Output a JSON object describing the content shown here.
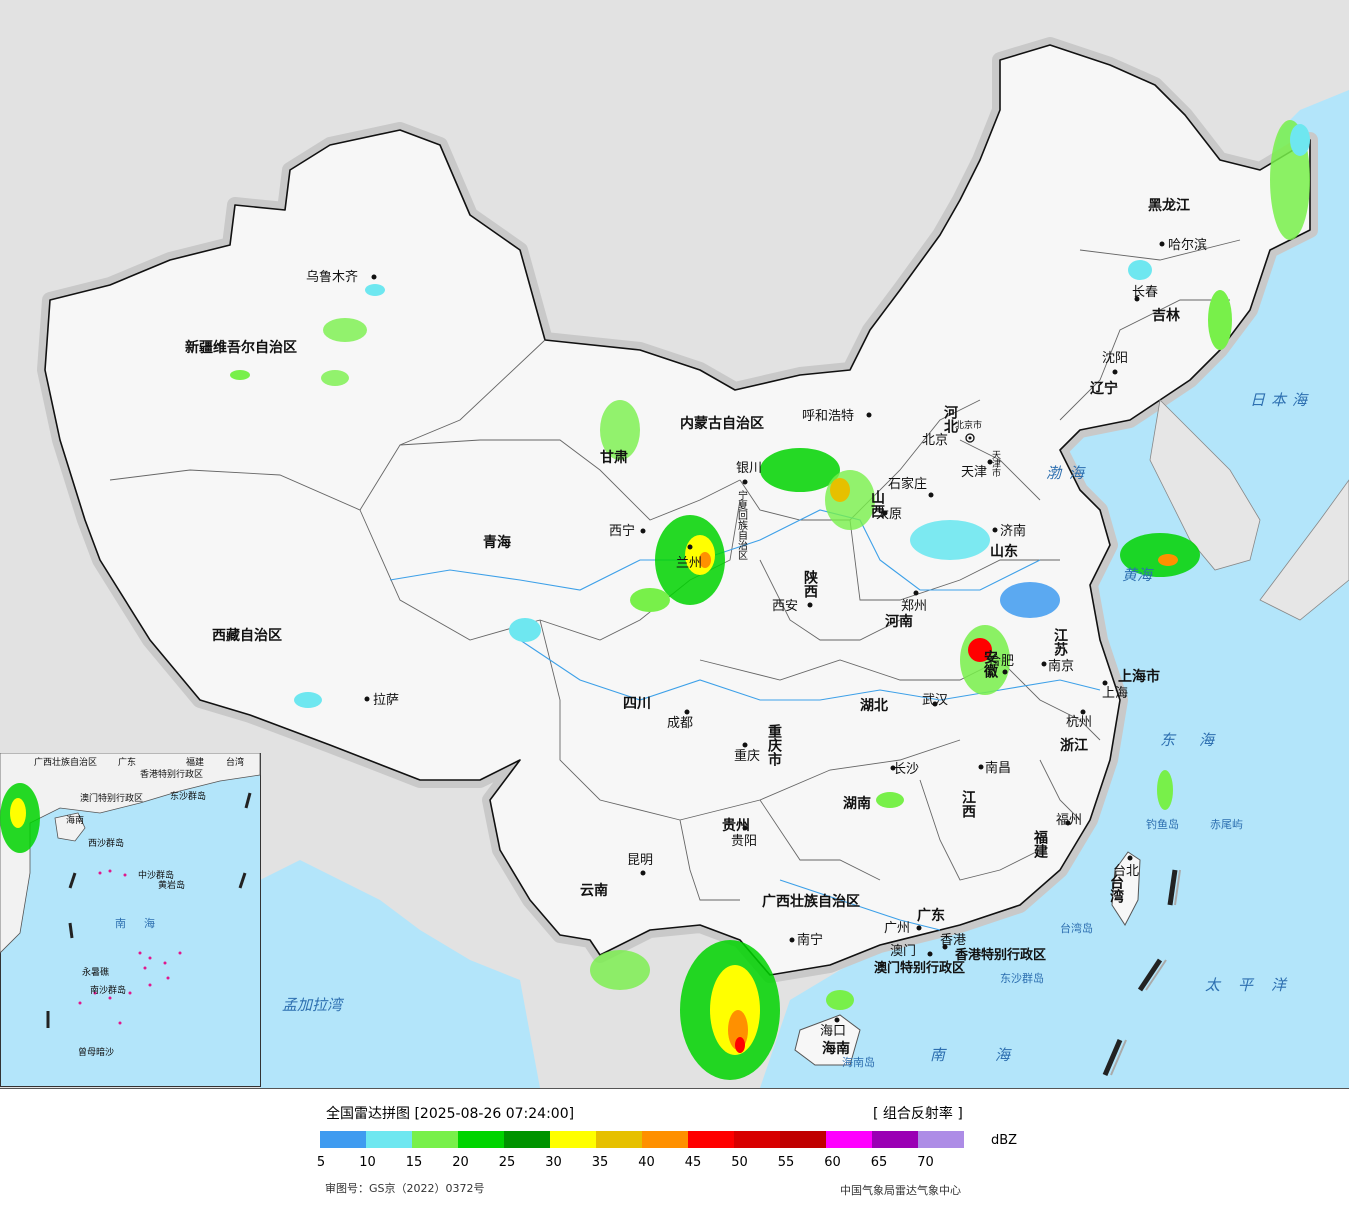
{
  "map": {
    "provinces": [
      {
        "name": "新疆维吾尔自治区"
      },
      {
        "name": "西藏自治区"
      },
      {
        "name": "青海"
      },
      {
        "name": "甘肃"
      },
      {
        "name": "内蒙古自治区"
      },
      {
        "name": "黑龙江"
      },
      {
        "name": "吉林"
      },
      {
        "name": "辽宁"
      },
      {
        "name": "河北"
      },
      {
        "name": "山西"
      },
      {
        "name": "山东"
      },
      {
        "name": "陕西"
      },
      {
        "name": "河南"
      },
      {
        "name": "江苏"
      },
      {
        "name": "安徽"
      },
      {
        "name": "湖北"
      },
      {
        "name": "四川"
      },
      {
        "name": "重庆市"
      },
      {
        "name": "浙江"
      },
      {
        "name": "江西"
      },
      {
        "name": "湖南"
      },
      {
        "name": "贵州"
      },
      {
        "name": "云南"
      },
      {
        "name": "福建"
      },
      {
        "name": "广西壮族自治区"
      },
      {
        "name": "广东"
      },
      {
        "name": "海南"
      },
      {
        "name": "台湾"
      },
      {
        "name": "上海市"
      },
      {
        "name": "宁夏回族自治区"
      }
    ],
    "cities": [
      "乌鲁木齐",
      "拉萨",
      "西宁",
      "兰州",
      "银川",
      "呼和浩特",
      "北京",
      "北京市",
      "天津",
      "天津市",
      "石家庄",
      "太原",
      "济南",
      "郑州",
      "西安",
      "成都",
      "重庆",
      "武汉",
      "合肥",
      "南京",
      "上海",
      "杭州",
      "长沙",
      "南昌",
      "贵阳",
      "昆明",
      "南宁",
      "广州",
      "福州",
      "台北",
      "海口",
      "哈尔滨",
      "长春",
      "沈阳",
      "香港",
      "澳门",
      "香港特别行政区",
      "澳门特别行政区"
    ],
    "seas": [
      "日本海",
      "渤海",
      "黄海",
      "东海",
      "南海",
      "太平洋",
      "孟加拉湾",
      "台湾岛",
      "海南岛",
      "钓鱼岛",
      "赤尾屿",
      "东沙群岛"
    ],
    "inset": {
      "labels": [
        "广西壮族自治区",
        "广东",
        "福建",
        "台湾",
        "香港特别行政区",
        "澳门特别行政区",
        "东沙群岛",
        "海南",
        "西沙群岛",
        "中沙群岛",
        "黄岩岛",
        "南海",
        "南沙群岛",
        "永暑礁",
        "曾母暗沙"
      ]
    }
  },
  "legend": {
    "title": "全国雷达拼图 [2025-08-26 07:24:00]",
    "product": "[ 组合反射率 ]",
    "unit": "dBZ",
    "colors": [
      "#3f9bf0",
      "#6ee7f0",
      "#78f04a",
      "#00d400",
      "#009300",
      "#ffff00",
      "#e6c000",
      "#ff9000",
      "#ff0000",
      "#d80000",
      "#c00000",
      "#ff00ff",
      "#9a00b4",
      "#ad8ce6"
    ],
    "ticks": [
      "5",
      "10",
      "15",
      "20",
      "25",
      "30",
      "35",
      "40",
      "45",
      "50",
      "55",
      "60",
      "65",
      "70"
    ],
    "review_number": "审图号：GS京（2022）0372号",
    "source": "中国气象局雷达气象中心"
  }
}
